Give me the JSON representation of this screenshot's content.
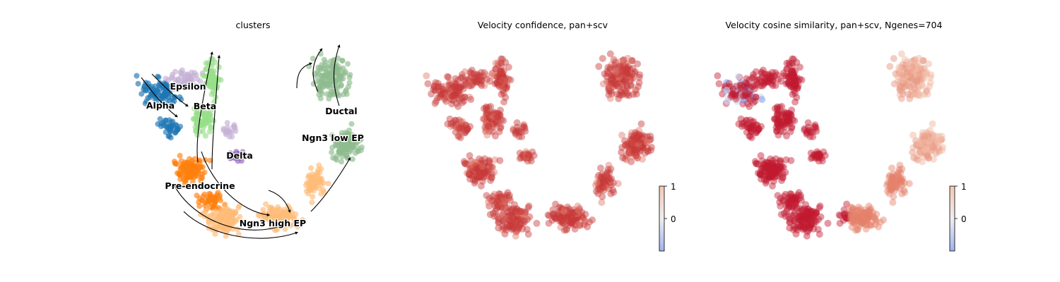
{
  "panels": [
    {
      "title": "clusters",
      "chart_data": {
        "type": "scatter",
        "title": "clusters",
        "xlabel": "",
        "ylabel": "",
        "grid": false,
        "frame": false,
        "overlay": "velocity stream lines (black arrows)",
        "clusters": [
          {
            "label": "Alpha",
            "color": "#1f77b4"
          },
          {
            "label": "Epsilon",
            "color": "#c5b0d5"
          },
          {
            "label": "Beta",
            "color": "#98df8a"
          },
          {
            "label": "Delta",
            "color": "#9467bd"
          },
          {
            "label": "Pre-endocrine",
            "color": "#ff7f0e"
          },
          {
            "label": "Ngn3 high EP",
            "color": "#ffbb78"
          },
          {
            "label": "Ngn3 low EP",
            "color": "#8fbc8f"
          },
          {
            "label": "Ductal",
            "color": "#8fbc8f"
          }
        ]
      }
    },
    {
      "title": "Velocity confidence, pan+scv",
      "chart_data": {
        "type": "scatter",
        "title": "Velocity confidence, pan+scv",
        "grid": false,
        "frame": false,
        "colormap": "coolwarm",
        "colorbar": {
          "ticks": [
            "1",
            "0"
          ]
        },
        "value_summary": "nearly all cells near 1 (uniform red)"
      }
    },
    {
      "title": "Velocity cosine similarity, pan+scv, Ngenes=704",
      "chart_data": {
        "type": "scatter",
        "title": "Velocity cosine similarity, pan+scv, Ngenes=704",
        "grid": false,
        "frame": false,
        "colormap": "coolwarm",
        "colorbar": {
          "ticks": [
            "1",
            "0"
          ]
        },
        "value_summary": "high on endocrine branch (dark red), lower on ductal branch (light salmon), some negative cells in Alpha region (blue)"
      }
    }
  ]
}
